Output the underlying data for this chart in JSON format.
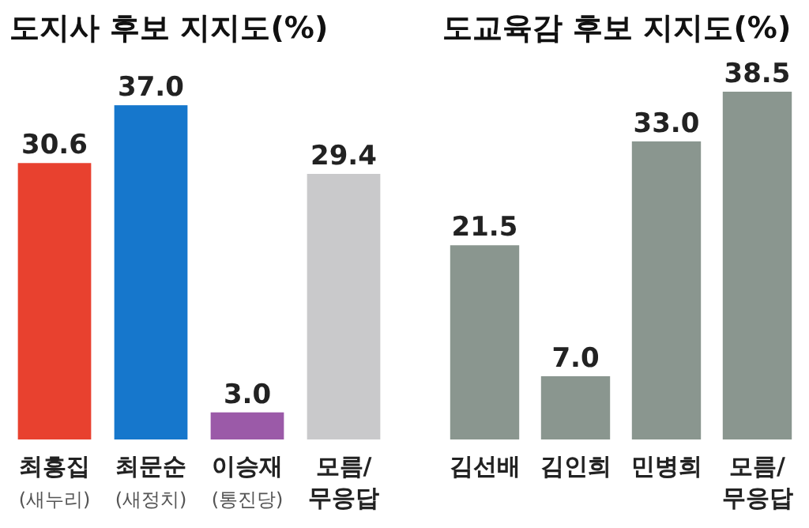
{
  "chart_data": [
    {
      "type": "bar",
      "title": "도지사 후보 지지도(%)",
      "categories": [
        "최흥집\n(새누리)",
        "최문순\n(새정치)",
        "이승재\n(통진당)",
        "모름/\n무응답"
      ],
      "values": [
        30.6,
        37.0,
        3.0,
        29.4
      ],
      "value_labels": [
        "30.6",
        "37.0",
        "3.0",
        "29.4"
      ],
      "colors": [
        "#e8412f",
        "#1677cc",
        "#9b5aa8",
        "#c9c9cb"
      ]
    },
    {
      "type": "bar",
      "title": "도교육감 후보 지지도(%)",
      "categories": [
        "김선배",
        "김인희",
        "민병희",
        "모름/\n무응답"
      ],
      "values": [
        21.5,
        7.0,
        33.0,
        38.5
      ],
      "value_labels": [
        "21.5",
        "7.0",
        "33.0",
        "38.5"
      ],
      "colors": [
        "#8a968f",
        "#8a968f",
        "#8a968f",
        "#8a968f"
      ]
    }
  ]
}
